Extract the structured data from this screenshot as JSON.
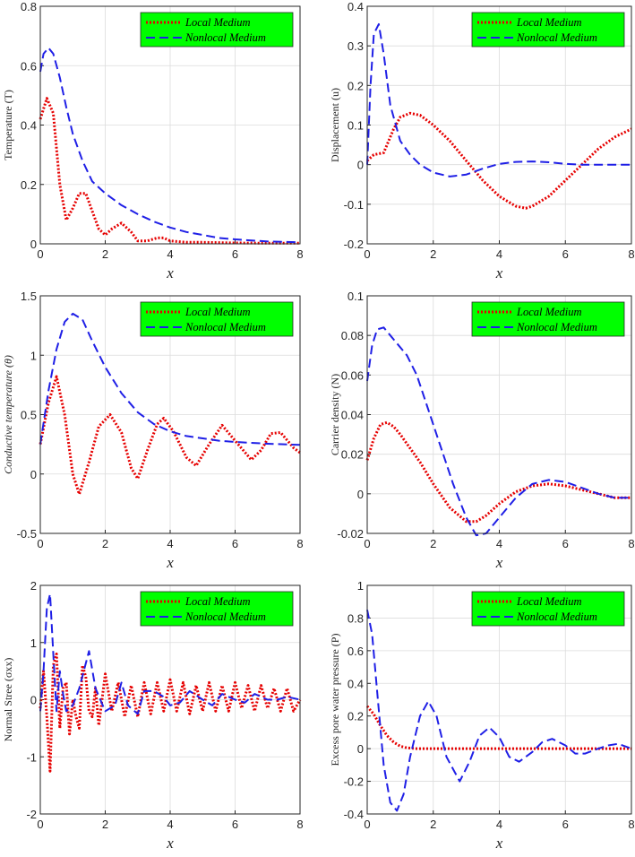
{
  "colors": {
    "local": "#e60000",
    "nonlocal": "#1f1fe6",
    "legend_bg": "#00ff00"
  },
  "legend_labels": [
    "Local Medium",
    "Nonlocal Medium"
  ],
  "chart_data": [
    {
      "type": "line",
      "xlabel": "x",
      "ylabel": "Temperature (T)",
      "xlim": [
        0,
        8
      ],
      "ylim": [
        0,
        0.8
      ],
      "xticks": [
        "0",
        "2",
        "4",
        "6",
        "8"
      ],
      "yticks": [
        "0",
        "0.2",
        "0.4",
        "0.6",
        "0.8"
      ],
      "grid": true,
      "legend_position": "top-right",
      "series": [
        {
          "name": "Local Medium",
          "style": "dotted",
          "x": [
            0,
            0.2,
            0.4,
            0.6,
            0.8,
            1.0,
            1.2,
            1.4,
            1.6,
            1.8,
            2.0,
            2.2,
            2.5,
            2.8,
            3.0,
            3.3,
            3.6,
            3.8,
            4.0,
            4.5,
            5.0,
            6.0,
            7.0,
            8.0
          ],
          "y": [
            0.42,
            0.49,
            0.44,
            0.2,
            0.08,
            0.12,
            0.17,
            0.17,
            0.11,
            0.05,
            0.03,
            0.05,
            0.07,
            0.04,
            0.01,
            0.01,
            0.02,
            0.02,
            0.01,
            0.005,
            0.005,
            0.003,
            0.002,
            0.002
          ]
        },
        {
          "name": "Nonlocal Medium",
          "style": "dashed",
          "x": [
            0,
            0.1,
            0.25,
            0.4,
            0.6,
            0.8,
            1.0,
            1.3,
            1.6,
            2.0,
            2.5,
            3.0,
            3.5,
            4.0,
            4.5,
            5.0,
            5.5,
            6.0,
            7.0,
            8.0
          ],
          "y": [
            0.58,
            0.64,
            0.66,
            0.64,
            0.56,
            0.46,
            0.37,
            0.28,
            0.21,
            0.17,
            0.13,
            0.1,
            0.075,
            0.055,
            0.04,
            0.03,
            0.02,
            0.015,
            0.008,
            0.005
          ]
        }
      ]
    },
    {
      "type": "line",
      "xlabel": "x",
      "ylabel": "Displacement (u)",
      "xlim": [
        0,
        8
      ],
      "ylim": [
        -0.2,
        0.4
      ],
      "xticks": [
        "0",
        "2",
        "4",
        "6",
        "8"
      ],
      "yticks": [
        "-0.2",
        "-0.1",
        "0",
        "0.1",
        "0.2",
        "0.3",
        "0.4"
      ],
      "grid": true,
      "legend_position": "top-right",
      "series": [
        {
          "name": "Local Medium",
          "style": "dotted",
          "x": [
            0,
            0.2,
            0.5,
            0.8,
            1.0,
            1.3,
            1.6,
            2.0,
            2.5,
            3.0,
            3.5,
            4.0,
            4.5,
            4.8,
            5.0,
            5.5,
            6.0,
            6.5,
            7.0,
            7.5,
            8.0
          ],
          "y": [
            0.01,
            0.025,
            0.03,
            0.09,
            0.12,
            0.13,
            0.125,
            0.1,
            0.06,
            0.01,
            -0.04,
            -0.08,
            -0.105,
            -0.11,
            -0.105,
            -0.08,
            -0.04,
            0.0,
            0.04,
            0.07,
            0.09
          ]
        },
        {
          "name": "Nonlocal Medium",
          "style": "dashed",
          "x": [
            0,
            0.1,
            0.2,
            0.35,
            0.5,
            0.7,
            1.0,
            1.3,
            1.6,
            2.0,
            2.5,
            3.0,
            3.5,
            4.0,
            4.5,
            5.0,
            5.5,
            6.0,
            6.5,
            7.0,
            8.0
          ],
          "y": [
            0.0,
            0.2,
            0.33,
            0.355,
            0.28,
            0.15,
            0.06,
            0.025,
            0.0,
            -0.02,
            -0.03,
            -0.025,
            -0.01,
            0.002,
            0.007,
            0.008,
            0.006,
            0.002,
            0.0,
            0.0,
            0.0
          ]
        }
      ]
    },
    {
      "type": "line",
      "xlabel": "x",
      "ylabel": "Conductive temperature (θ)",
      "xlim": [
        0,
        8
      ],
      "ylim": [
        -0.5,
        1.5
      ],
      "xticks": [
        "0",
        "2",
        "4",
        "6",
        "8"
      ],
      "yticks": [
        "-0.5",
        "0",
        "0.5",
        "1",
        "1.5"
      ],
      "grid": true,
      "legend_position": "top-right",
      "series": [
        {
          "name": "Local Medium",
          "style": "dotted",
          "x": [
            0,
            0.25,
            0.5,
            0.75,
            1.0,
            1.2,
            1.5,
            1.8,
            2.15,
            2.5,
            2.8,
            3.0,
            3.3,
            3.6,
            3.8,
            4.1,
            4.5,
            4.8,
            5.2,
            5.6,
            6.0,
            6.5,
            6.8,
            7.1,
            7.4,
            7.8,
            8.0
          ],
          "y": [
            0.25,
            0.6,
            0.82,
            0.5,
            0.0,
            -0.17,
            0.1,
            0.4,
            0.5,
            0.35,
            0.05,
            -0.04,
            0.2,
            0.42,
            0.47,
            0.36,
            0.14,
            0.07,
            0.25,
            0.41,
            0.28,
            0.12,
            0.2,
            0.34,
            0.35,
            0.22,
            0.18
          ]
        },
        {
          "name": "Nonlocal Medium",
          "style": "dashed",
          "x": [
            0,
            0.25,
            0.5,
            0.75,
            1.0,
            1.3,
            1.6,
            2.0,
            2.5,
            3.0,
            3.5,
            4.0,
            4.5,
            5.0,
            5.5,
            6.0,
            7.0,
            8.0
          ],
          "y": [
            0.25,
            0.7,
            1.05,
            1.28,
            1.35,
            1.3,
            1.12,
            0.9,
            0.68,
            0.52,
            0.42,
            0.36,
            0.32,
            0.3,
            0.28,
            0.27,
            0.255,
            0.245
          ]
        }
      ]
    },
    {
      "type": "line",
      "xlabel": "x",
      "ylabel": "Carrier density (N)",
      "xlim": [
        0,
        8
      ],
      "ylim": [
        -0.02,
        0.1
      ],
      "xticks": [
        "0",
        "2",
        "4",
        "6",
        "8"
      ],
      "yticks": [
        "-0.02",
        "0",
        "0.02",
        "0.04",
        "0.06",
        "0.08",
        "0.1"
      ],
      "grid": true,
      "legend_position": "top-right",
      "series": [
        {
          "name": "Local Medium",
          "style": "dotted",
          "x": [
            0,
            0.2,
            0.4,
            0.6,
            0.8,
            1.0,
            1.3,
            1.6,
            2.0,
            2.5,
            3.0,
            3.3,
            3.6,
            4.0,
            4.5,
            5.0,
            5.5,
            6.0,
            6.5,
            7.0,
            7.5,
            8.0
          ],
          "y": [
            0.017,
            0.028,
            0.035,
            0.036,
            0.034,
            0.03,
            0.023,
            0.016,
            0.005,
            -0.007,
            -0.014,
            -0.014,
            -0.011,
            -0.005,
            0.001,
            0.004,
            0.005,
            0.004,
            0.002,
            0.0,
            -0.002,
            -0.002
          ]
        },
        {
          "name": "Nonlocal Medium",
          "style": "dashed",
          "x": [
            0,
            0.15,
            0.3,
            0.5,
            0.8,
            1.2,
            1.5,
            1.8,
            2.2,
            2.6,
            3.0,
            3.3,
            3.6,
            4.0,
            4.5,
            5.0,
            5.5,
            6.0,
            6.5,
            7.0,
            7.5,
            8.0
          ],
          "y": [
            0.057,
            0.075,
            0.083,
            0.084,
            0.078,
            0.07,
            0.06,
            0.045,
            0.025,
            0.005,
            -0.012,
            -0.021,
            -0.02,
            -0.012,
            -0.002,
            0.005,
            0.007,
            0.006,
            0.003,
            0.0,
            -0.002,
            -0.002
          ]
        }
      ]
    },
    {
      "type": "line",
      "xlabel": "x",
      "ylabel": "Normal Stree (σxx)",
      "xlim": [
        0,
        8
      ],
      "ylim": [
        -2,
        2
      ],
      "xticks": [
        "0",
        "2",
        "4",
        "6",
        "8"
      ],
      "yticks": [
        "-2",
        "-1",
        "0",
        "1",
        "2"
      ],
      "grid": true,
      "legend_position": "top-right",
      "series": [
        {
          "name": "Local Medium",
          "style": "dotted",
          "x": [
            0,
            0.1,
            0.2,
            0.3,
            0.4,
            0.5,
            0.6,
            0.7,
            0.8,
            0.9,
            1.0,
            1.1,
            1.2,
            1.3,
            1.4,
            1.5,
            1.6,
            1.7,
            1.8,
            2.0,
            2.2,
            2.4,
            2.6,
            2.8,
            3.0,
            3.2,
            3.4,
            3.6,
            3.8,
            4.0,
            4.2,
            4.4,
            4.6,
            4.8,
            5.0,
            5.2,
            5.4,
            5.6,
            5.8,
            6.0,
            6.2,
            6.4,
            6.6,
            6.8,
            7.0,
            7.2,
            7.4,
            7.6,
            7.8,
            8.0
          ],
          "y": [
            -0.15,
            0.5,
            -0.3,
            -1.25,
            0.6,
            0.8,
            -0.5,
            0.2,
            0.3,
            -0.6,
            0.0,
            -0.3,
            -0.5,
            0.6,
            0.4,
            -0.2,
            -0.3,
            0.2,
            -0.45,
            0.45,
            -0.2,
            0.3,
            -0.3,
            0.25,
            -0.3,
            0.3,
            -0.25,
            0.3,
            -0.2,
            0.35,
            -0.2,
            0.3,
            -0.25,
            0.25,
            -0.2,
            0.3,
            -0.2,
            0.25,
            -0.2,
            0.3,
            -0.15,
            0.25,
            -0.2,
            0.25,
            -0.15,
            0.2,
            -0.2,
            0.2,
            -0.2,
            0.0
          ]
        },
        {
          "name": "Nonlocal Medium",
          "style": "dashed",
          "x": [
            0,
            0.1,
            0.2,
            0.3,
            0.4,
            0.5,
            0.6,
            0.7,
            0.8,
            1.0,
            1.2,
            1.5,
            1.7,
            2.0,
            2.3,
            2.5,
            2.7,
            3.0,
            3.2,
            3.5,
            3.8,
            4.0,
            4.3,
            4.6,
            5.0,
            5.3,
            5.6,
            6.0,
            6.3,
            6.6,
            7.0,
            7.3,
            7.6,
            8.0
          ],
          "y": [
            -0.2,
            0.5,
            1.6,
            1.85,
            0.8,
            -0.2,
            0.5,
            0.1,
            -0.2,
            -0.1,
            0.2,
            0.85,
            0.2,
            -0.2,
            -0.1,
            0.3,
            -0.1,
            -0.25,
            0.15,
            0.15,
            0.05,
            -0.1,
            -0.05,
            0.15,
            0.0,
            -0.1,
            0.1,
            0.0,
            -0.05,
            0.1,
            0.0,
            0.0,
            0.05,
            0.0
          ]
        }
      ]
    },
    {
      "type": "line",
      "xlabel": "x",
      "ylabel": "Excess pore water pressure (P)",
      "xlim": [
        0,
        8
      ],
      "ylim": [
        -0.4,
        1
      ],
      "xticks": [
        "0",
        "2",
        "4",
        "6",
        "8"
      ],
      "yticks": [
        "-0.4",
        "-0.2",
        "0",
        "0.2",
        "0.4",
        "0.6",
        "0.8",
        "1"
      ],
      "grid": true,
      "legend_position": "top-right",
      "series": [
        {
          "name": "Local Medium",
          "style": "dotted",
          "x": [
            0,
            0.2,
            0.4,
            0.6,
            0.8,
            1.0,
            1.2,
            1.5,
            2.0,
            3.0,
            4.0,
            5.0,
            6.0,
            7.0,
            8.0
          ],
          "y": [
            0.26,
            0.21,
            0.14,
            0.08,
            0.04,
            0.015,
            0.005,
            0.0,
            0.0,
            0.0,
            0.0,
            0.0,
            0.0,
            0.0,
            0.0
          ]
        },
        {
          "name": "Nonlocal Medium",
          "style": "dashed",
          "x": [
            0,
            0.15,
            0.3,
            0.5,
            0.7,
            0.9,
            1.1,
            1.3,
            1.6,
            1.85,
            2.1,
            2.4,
            2.8,
            3.1,
            3.4,
            3.7,
            4.0,
            4.3,
            4.6,
            5.0,
            5.3,
            5.6,
            6.0,
            6.3,
            6.6,
            7.0,
            7.3,
            7.6,
            8.0
          ],
          "y": [
            0.85,
            0.7,
            0.35,
            -0.1,
            -0.33,
            -0.38,
            -0.28,
            -0.05,
            0.2,
            0.29,
            0.2,
            -0.05,
            -0.2,
            -0.08,
            0.08,
            0.13,
            0.07,
            -0.05,
            -0.08,
            -0.02,
            0.04,
            0.06,
            0.02,
            -0.03,
            -0.03,
            0.0,
            0.02,
            0.03,
            0.0
          ]
        }
      ]
    }
  ]
}
